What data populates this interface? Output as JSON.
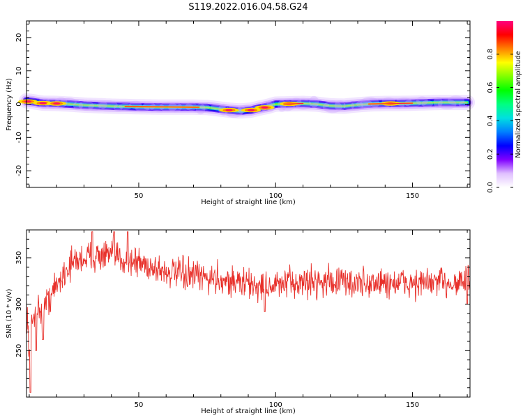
{
  "figure_title": "S119.2022.016.04.58.G24",
  "chart_data": [
    {
      "type": "heatmap",
      "xlabel": "Height of straight line (km)",
      "ylabel": "Frequency (Hz)",
      "xlim": [
        9,
        171
      ],
      "ylim": [
        -25,
        25
      ],
      "xticks": [
        50,
        100,
        150
      ],
      "yticks": [
        -20,
        -10,
        0,
        10,
        20
      ],
      "ridge": {
        "x": [
          9,
          15,
          20,
          25,
          30,
          40,
          50,
          60,
          70,
          75,
          80,
          83,
          86,
          88,
          91,
          94,
          97,
          100,
          105,
          110,
          115,
          120,
          125,
          130,
          135,
          140,
          145,
          150,
          155,
          160,
          165,
          170
        ],
        "freq": [
          1.0,
          0.3,
          0.2,
          0.0,
          -0.3,
          -0.6,
          -0.8,
          -0.9,
          -0.9,
          -1.0,
          -1.5,
          -1.8,
          -2.0,
          -2.0,
          -1.8,
          -1.2,
          -0.7,
          0.0,
          0.1,
          0.2,
          0.0,
          -0.5,
          -0.6,
          -0.2,
          0.1,
          0.2,
          0.2,
          0.3,
          0.4,
          0.5,
          0.5,
          0.5
        ]
      },
      "peaks": [
        {
          "x": 9.5,
          "freq": 0.8
        },
        {
          "x": 15,
          "freq": 0.3
        },
        {
          "x": 20,
          "freq": 0.2
        },
        {
          "x": 83,
          "freq": -1.8
        },
        {
          "x": 91,
          "freq": -1.8
        },
        {
          "x": 96,
          "freq": -1.0
        },
        {
          "x": 105,
          "freq": 0.1
        },
        {
          "x": 142,
          "freq": 0.2
        }
      ],
      "colorbar": {
        "label": "Normalized spectral amplitude",
        "ticks": [
          "0.0",
          "0.2",
          "0.4",
          "0.6",
          "0.8"
        ],
        "range": [
          0,
          1
        ],
        "colors": [
          "#ffffff",
          "#e0c0ff",
          "#8000ff",
          "#0000ff",
          "#0080ff",
          "#00e0e0",
          "#00ff80",
          "#00ff00",
          "#80ff00",
          "#ffff00",
          "#ff8000",
          "#ff0000",
          "#ff0080"
        ]
      }
    },
    {
      "type": "line",
      "xlabel": "Height of straight line (km)",
      "ylabel": "SNR (10 * v/v)",
      "xlim": [
        9,
        171
      ],
      "ylim": [
        200,
        380
      ],
      "xticks": [
        50,
        100,
        150
      ],
      "yticks": [
        250,
        300,
        350
      ],
      "color": "#e8302a",
      "trend": {
        "x": [
          9,
          10,
          11,
          12,
          14,
          16,
          18,
          20,
          23,
          26,
          30,
          35,
          40,
          45,
          50,
          55,
          60,
          65,
          70,
          75,
          80,
          85,
          90,
          95,
          100,
          110,
          120,
          130,
          140,
          150,
          160,
          165,
          171
        ],
        "y": [
          300,
          250,
          280,
          290,
          295,
          300,
          310,
          320,
          335,
          345,
          350,
          352,
          352,
          348,
          345,
          340,
          335,
          332,
          330,
          328,
          327,
          324,
          322,
          318,
          320,
          324,
          325,
          322,
          323,
          322,
          323,
          324,
          325
        ]
      },
      "noise": 12,
      "dips": [
        {
          "x": 10.5,
          "y": 205
        },
        {
          "x": 12.5,
          "y": 250
        },
        {
          "x": 15,
          "y": 262
        },
        {
          "x": 96,
          "y": 292
        },
        {
          "x": 170,
          "y": 300
        }
      ],
      "spikes": [
        {
          "x": 33,
          "y": 378
        },
        {
          "x": 41,
          "y": 378
        },
        {
          "x": 46,
          "y": 378
        }
      ]
    }
  ]
}
